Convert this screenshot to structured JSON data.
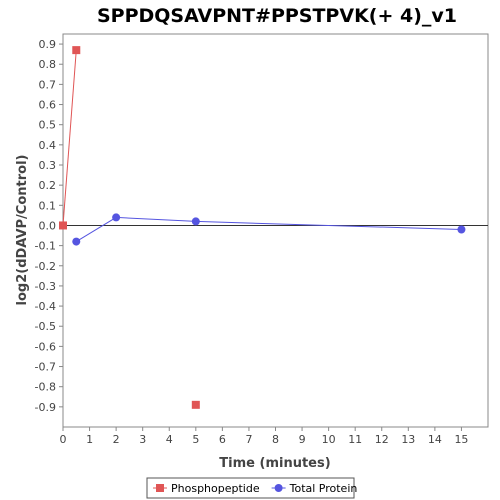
{
  "chart_data": {
    "type": "line",
    "title": "SPPDQSAVPNT#PPSTPVK(+ 4)_v1",
    "xlabel": "Time (minutes)",
    "ylabel": "log2(dDAVP/Control)",
    "xlim": [
      0,
      16
    ],
    "ylim": [
      -1.0,
      0.95
    ],
    "x_ticks": [
      0,
      1,
      2,
      3,
      4,
      5,
      6,
      7,
      8,
      9,
      10,
      11,
      12,
      13,
      14,
      15
    ],
    "y_ticks": [
      0.9,
      0.8,
      0.7,
      0.6,
      0.5,
      0.4,
      0.3,
      0.2,
      0.1,
      0.0,
      -0.1,
      -0.2,
      -0.3,
      -0.4,
      -0.5,
      -0.6,
      -0.7,
      -0.8,
      -0.9
    ],
    "y_tick_labels": [
      "0.9",
      "0.8",
      "0.7",
      "0.6",
      "0.5",
      "0.4",
      "0.3",
      "0.2",
      "0.1",
      "0.0",
      "-0.1",
      "-0.2",
      "-0.3",
      "-0.4",
      "-0.5",
      "-0.6",
      "-0.7",
      "-0.8",
      "-0.9"
    ],
    "zero_line": true,
    "grid": false,
    "legend_position": "bottom",
    "series": [
      {
        "name": "Phosphopeptide",
        "color": "#e05555",
        "marker": "square",
        "points": [
          [
            0,
            0.0
          ],
          [
            0.5,
            0.87
          ]
        ],
        "unconnected_points": [
          [
            5,
            -0.89
          ]
        ]
      },
      {
        "name": "Total Protein",
        "color": "#5555e0",
        "marker": "circle",
        "points": [
          [
            0.5,
            -0.08
          ],
          [
            2,
            0.04
          ],
          [
            5,
            0.02
          ],
          [
            15,
            -0.02
          ]
        ]
      }
    ]
  }
}
